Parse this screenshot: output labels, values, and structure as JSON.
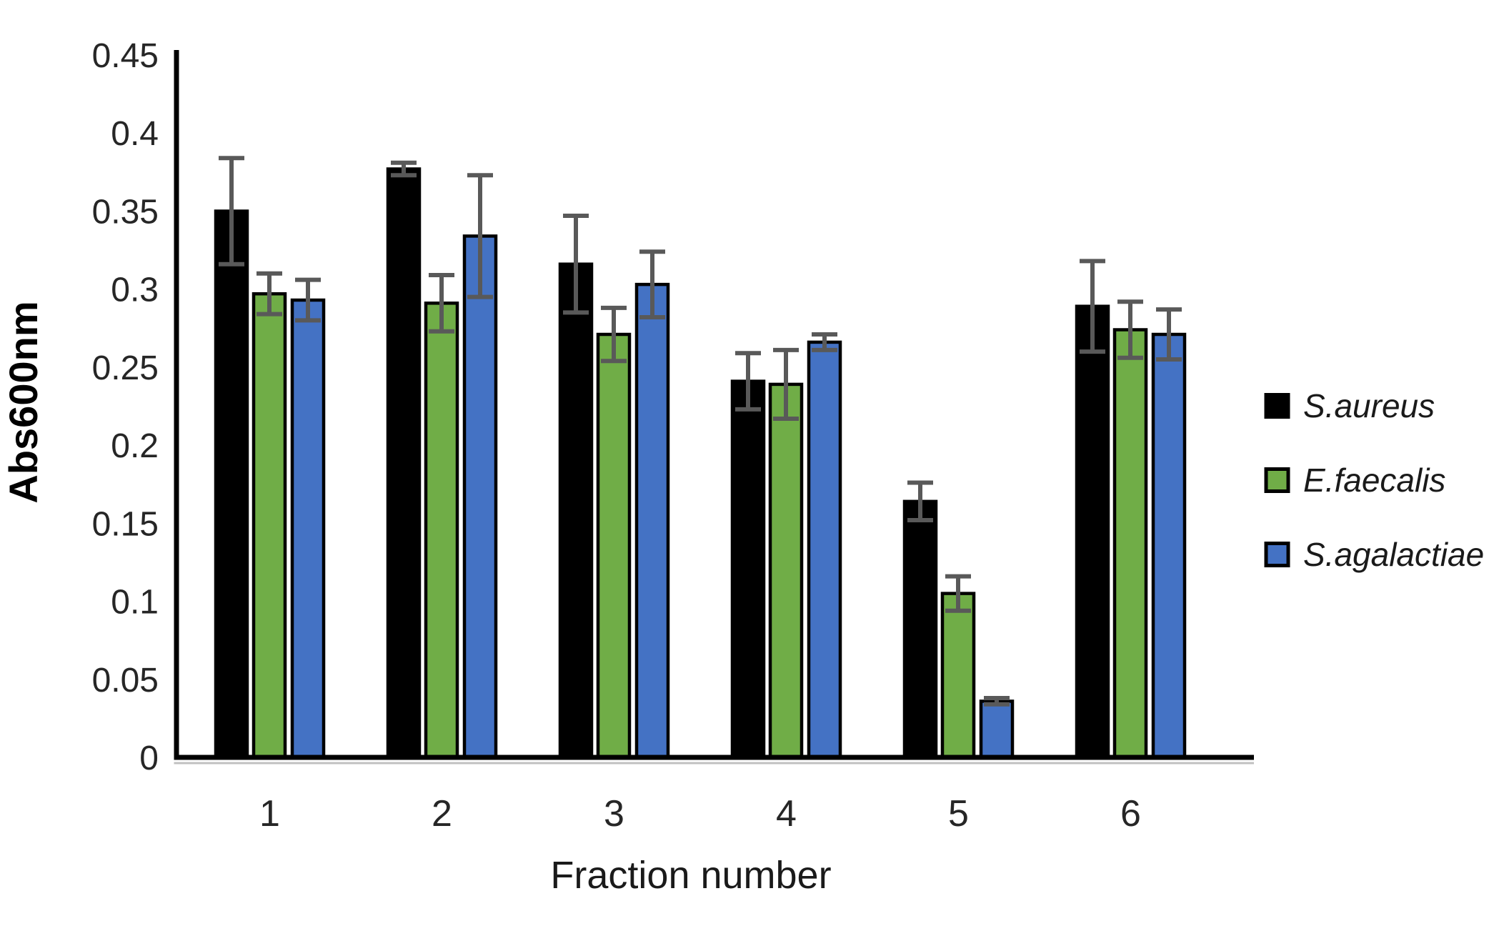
{
  "figure": {
    "y_axis_title": "Abs600nm",
    "x_axis_title": "Fraction number"
  },
  "chart_data": {
    "type": "bar",
    "title": "",
    "xlabel": "Fraction number",
    "ylabel": "Abs600nm",
    "categories": [
      "1",
      "2",
      "3",
      "4",
      "5",
      "6"
    ],
    "ylim": [
      0,
      0.45
    ],
    "y_ticks": {
      "values": [
        0.45,
        0.4,
        0.35,
        0.3,
        0.25,
        0.2,
        0.15,
        0.1,
        0.05,
        0
      ],
      "labels": [
        "0.45",
        "0.4",
        "0.35",
        "0.3",
        "0.25",
        "0.2",
        "0.15",
        "0.1",
        "0.05",
        "0"
      ]
    },
    "grid": false,
    "legend_position": "right",
    "error_bars": true,
    "colors": {
      "bar_outline": "#000000",
      "error_bar": "#595959",
      "axis_line": "#000000",
      "tick_label": "#262626",
      "axis_title": "#000000"
    },
    "series": [
      {
        "name": "S.aureus",
        "color": "#000000",
        "values": [
          0.35,
          0.377,
          0.316,
          0.241,
          0.164,
          0.289
        ],
        "errors": [
          0.034,
          0.004,
          0.031,
          0.018,
          0.012,
          0.029
        ]
      },
      {
        "name": "E.faecalis",
        "color": "#70AD47",
        "values": [
          0.297,
          0.291,
          0.271,
          0.239,
          0.105,
          0.274
        ],
        "errors": [
          0.013,
          0.018,
          0.017,
          0.022,
          0.011,
          0.018
        ]
      },
      {
        "name": "S.agalactiae",
        "color": "#4472C4",
        "values": [
          0.293,
          0.334,
          0.303,
          0.266,
          0.036,
          0.271
        ],
        "errors": [
          0.013,
          0.039,
          0.021,
          0.005,
          0.002,
          0.016
        ]
      }
    ]
  }
}
